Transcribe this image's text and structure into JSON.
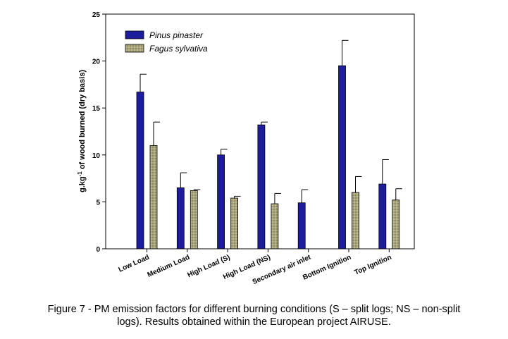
{
  "chart_data": {
    "type": "bar",
    "title": "",
    "xlabel": "",
    "ylabel": "g.kg-1 of wood burned (dry basis)",
    "ylabel_parts": {
      "prefix": "g.kg",
      "superscript": "-1",
      "suffix": " of wood burned (dry basis)"
    },
    "ylim": [
      0,
      25
    ],
    "yticks": [
      0,
      5,
      10,
      15,
      20,
      25
    ],
    "legend_position": "top-left",
    "grid": false,
    "categories": [
      "Low Load",
      "Medium Load",
      "High Load (S)",
      "High Load (NS)",
      "Secondary air inlet",
      "Bottom Ignition",
      "Top Ignition"
    ],
    "series": [
      {
        "name": "Pinus pinaster",
        "color": "#1c1c9c",
        "values": [
          16.7,
          6.5,
          10.0,
          13.2,
          4.9,
          19.5,
          6.9
        ],
        "errors": [
          1.9,
          1.6,
          0.6,
          0.3,
          1.4,
          2.7,
          2.6
        ]
      },
      {
        "name": "Fagus sylvativa",
        "color": "#a8a47c",
        "values": [
          11.0,
          6.2,
          5.4,
          4.8,
          null,
          6.0,
          5.2
        ],
        "errors": [
          2.5,
          0.1,
          0.2,
          1.1,
          null,
          1.7,
          1.2
        ]
      }
    ]
  },
  "caption": {
    "line1": "Figure 7 - PM emission factors for different burning conditions (S – split logs; NS – non-split",
    "line2": "logs). Results obtained within the European project AIRUSE."
  }
}
